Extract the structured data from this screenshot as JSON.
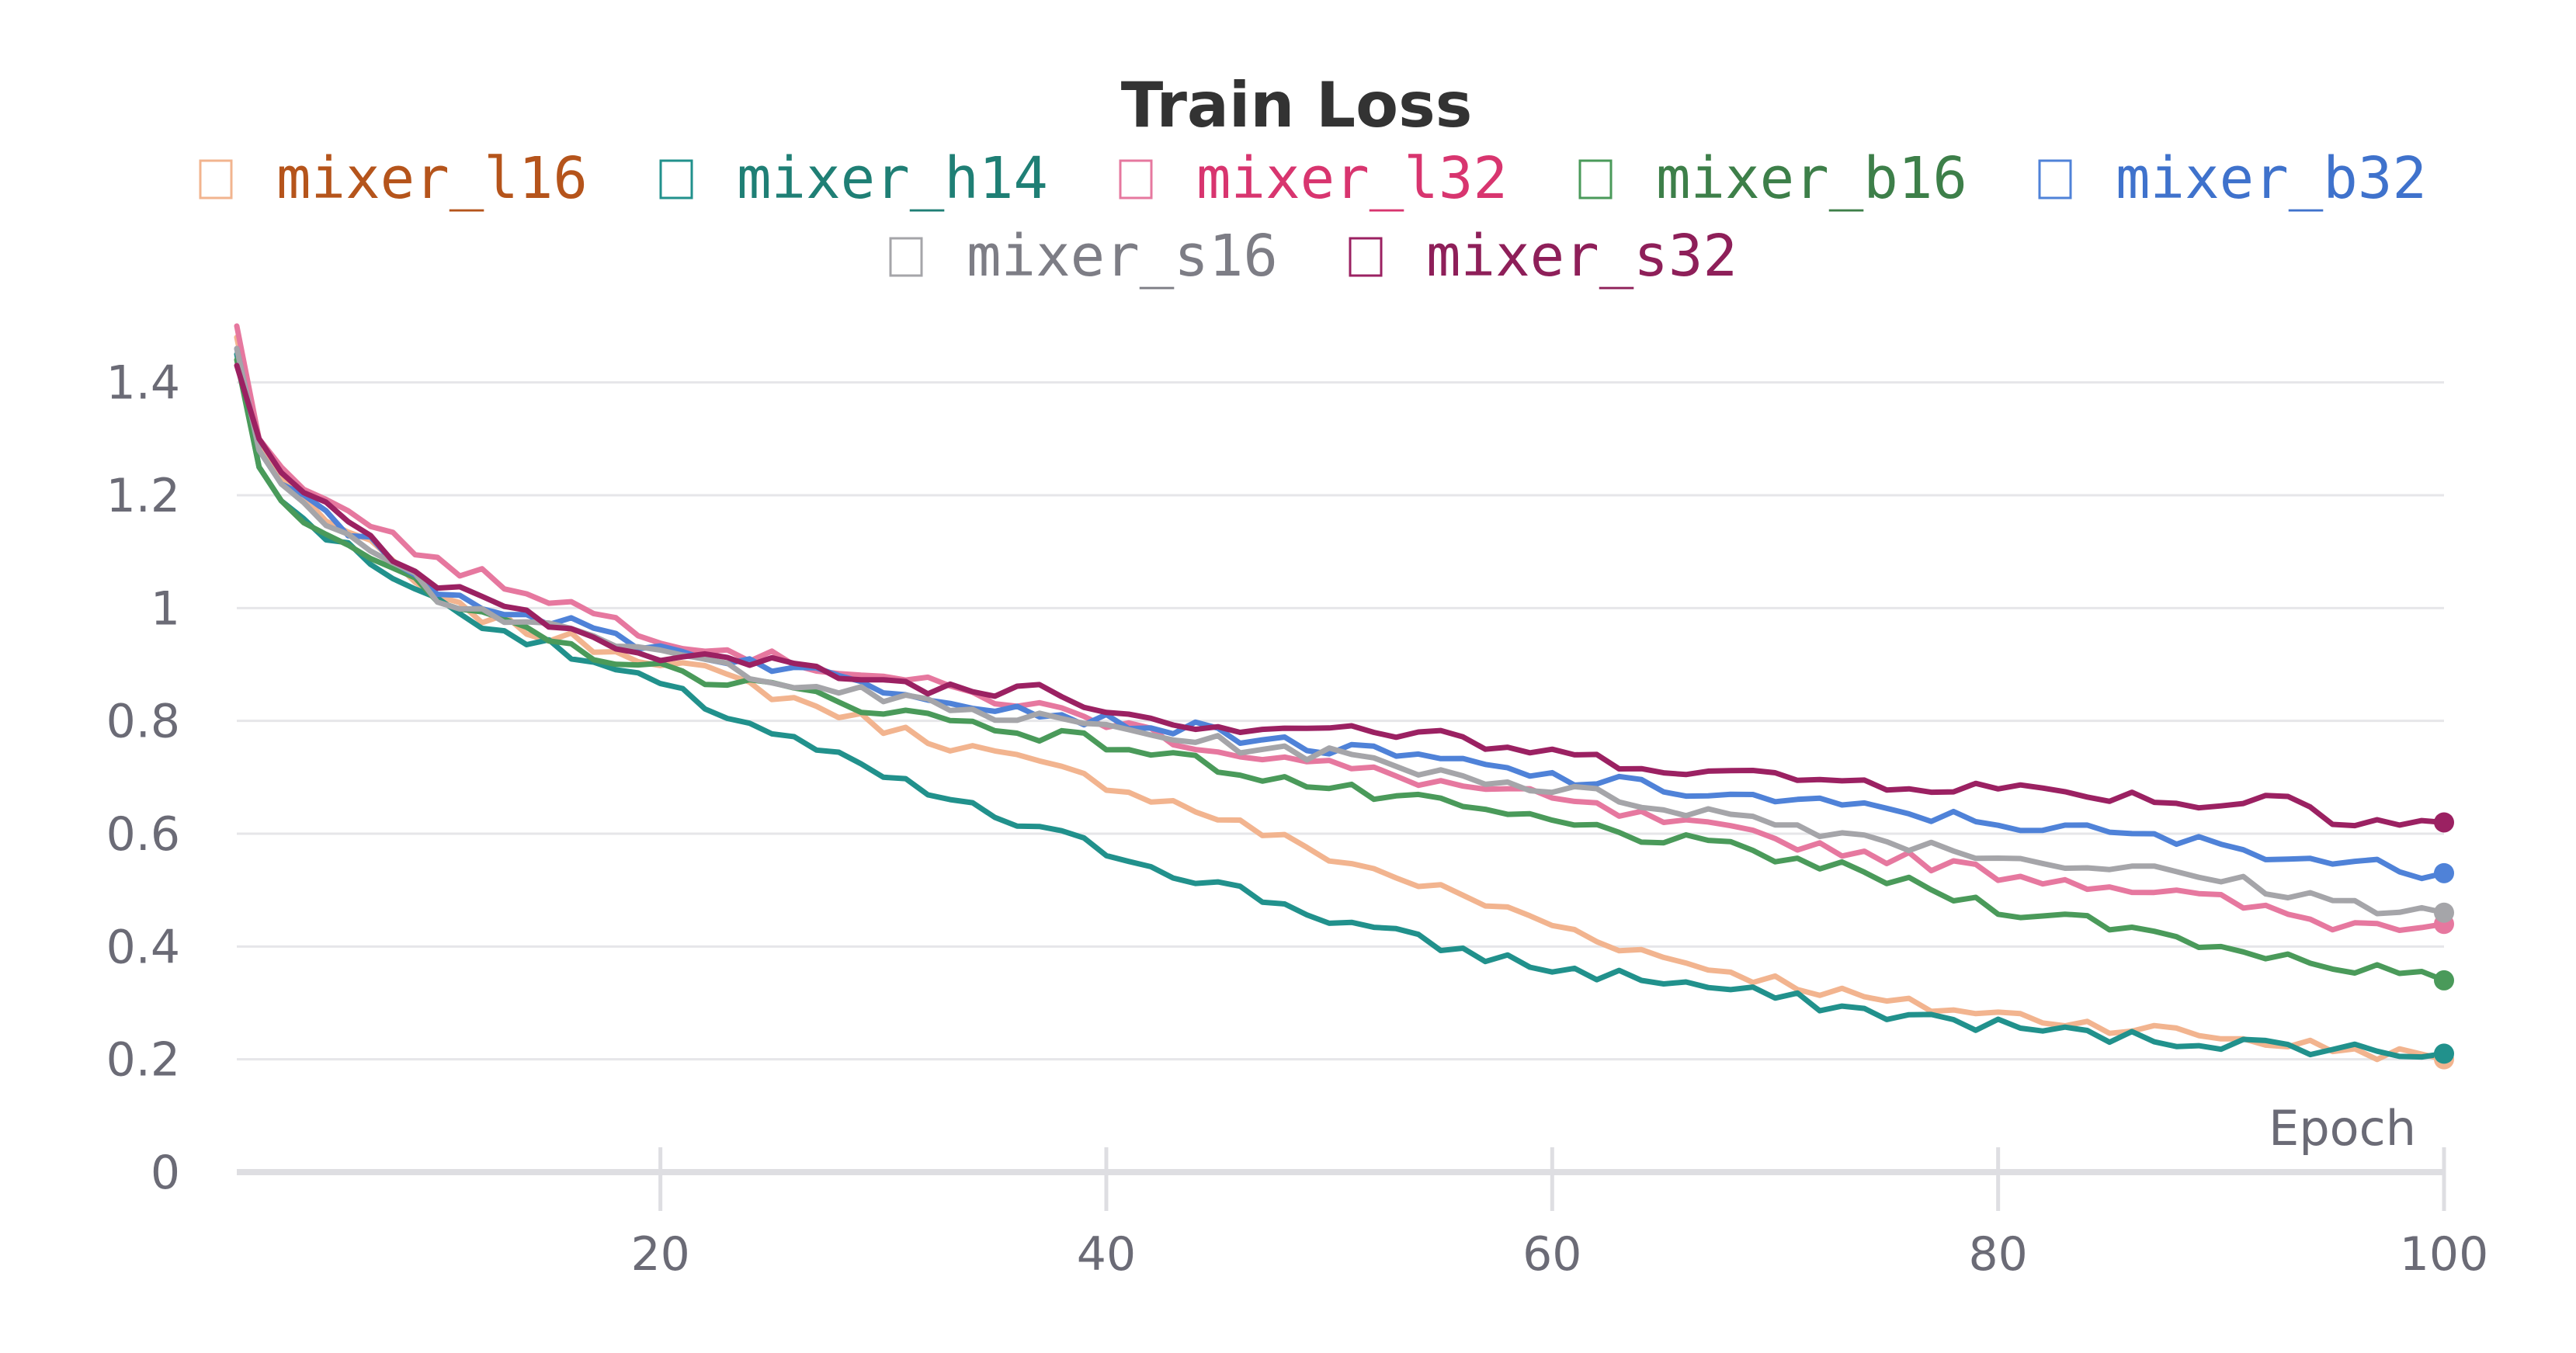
{
  "chart_data": {
    "type": "line",
    "title": "Train Loss",
    "xlabel": "Epoch",
    "ylabel": "",
    "xlim": [
      1,
      100
    ],
    "ylim": [
      0,
      1.5
    ],
    "xticks": [
      20,
      40,
      60,
      80,
      100
    ],
    "yticks": [
      0,
      0.2,
      0.4,
      0.6,
      0.8,
      1,
      1.2,
      1.4
    ],
    "ytick_labels": [
      "0",
      "0.2",
      "0.4",
      "0.6",
      "0.8",
      "1",
      "1.2",
      "1.4"
    ],
    "grid": true,
    "legend_position": "top",
    "series": [
      {
        "name": "mixer_l16",
        "color": "#f2b48f",
        "text_color": "#b5541b",
        "anchors": [
          [
            1,
            1.48
          ],
          [
            2,
            1.29
          ],
          [
            3,
            1.23
          ],
          [
            5,
            1.16
          ],
          [
            8,
            1.08
          ],
          [
            10,
            1.01
          ],
          [
            15,
            0.95
          ],
          [
            20,
            0.91
          ],
          [
            25,
            0.85
          ],
          [
            30,
            0.79
          ],
          [
            35,
            0.74
          ],
          [
            40,
            0.69
          ],
          [
            45,
            0.63
          ],
          [
            50,
            0.56
          ],
          [
            55,
            0.5
          ],
          [
            60,
            0.44
          ],
          [
            65,
            0.38
          ],
          [
            70,
            0.34
          ],
          [
            75,
            0.3
          ],
          [
            80,
            0.28
          ],
          [
            85,
            0.26
          ],
          [
            90,
            0.24
          ],
          [
            95,
            0.22
          ],
          [
            100,
            0.2
          ]
        ]
      },
      {
        "name": "mixer_h14",
        "color": "#21918c",
        "text_color": "#1f7f75",
        "anchors": [
          [
            1,
            1.45
          ],
          [
            2,
            1.25
          ],
          [
            3,
            1.19
          ],
          [
            5,
            1.13
          ],
          [
            8,
            1.06
          ],
          [
            10,
            1.01
          ],
          [
            15,
            0.93
          ],
          [
            20,
            0.86
          ],
          [
            25,
            0.78
          ],
          [
            30,
            0.7
          ],
          [
            35,
            0.63
          ],
          [
            40,
            0.57
          ],
          [
            45,
            0.51
          ],
          [
            50,
            0.45
          ],
          [
            55,
            0.4
          ],
          [
            60,
            0.36
          ],
          [
            65,
            0.34
          ],
          [
            70,
            0.31
          ],
          [
            75,
            0.28
          ],
          [
            80,
            0.26
          ],
          [
            85,
            0.24
          ],
          [
            90,
            0.23
          ],
          [
            95,
            0.22
          ],
          [
            100,
            0.21
          ]
        ]
      },
      {
        "name": "mixer_l32",
        "color": "#e6789f",
        "text_color": "#d8356f",
        "anchors": [
          [
            1,
            1.5
          ],
          [
            2,
            1.3
          ],
          [
            3,
            1.25
          ],
          [
            5,
            1.19
          ],
          [
            8,
            1.13
          ],
          [
            10,
            1.08
          ],
          [
            15,
            1.02
          ],
          [
            20,
            0.95
          ],
          [
            25,
            0.91
          ],
          [
            30,
            0.88
          ],
          [
            35,
            0.84
          ],
          [
            40,
            0.8
          ],
          [
            45,
            0.75
          ],
          [
            50,
            0.72
          ],
          [
            55,
            0.69
          ],
          [
            60,
            0.66
          ],
          [
            65,
            0.62
          ],
          [
            70,
            0.59
          ],
          [
            75,
            0.56
          ],
          [
            80,
            0.53
          ],
          [
            85,
            0.51
          ],
          [
            90,
            0.48
          ],
          [
            95,
            0.44
          ],
          [
            100,
            0.44
          ]
        ]
      },
      {
        "name": "mixer_b16",
        "color": "#4a9a5a",
        "text_color": "#3d7f49",
        "anchors": [
          [
            1,
            1.44
          ],
          [
            2,
            1.25
          ],
          [
            3,
            1.19
          ],
          [
            5,
            1.14
          ],
          [
            8,
            1.07
          ],
          [
            10,
            1.01
          ],
          [
            15,
            0.94
          ],
          [
            20,
            0.89
          ],
          [
            25,
            0.86
          ],
          [
            30,
            0.82
          ],
          [
            35,
            0.79
          ],
          [
            40,
            0.76
          ],
          [
            45,
            0.72
          ],
          [
            50,
            0.68
          ],
          [
            55,
            0.65
          ],
          [
            60,
            0.62
          ],
          [
            65,
            0.59
          ],
          [
            70,
            0.56
          ],
          [
            75,
            0.52
          ],
          [
            80,
            0.47
          ],
          [
            85,
            0.44
          ],
          [
            90,
            0.4
          ],
          [
            95,
            0.37
          ],
          [
            100,
            0.34
          ]
        ]
      },
      {
        "name": "mixer_b32",
        "color": "#4f82d8",
        "text_color": "#3f72cc",
        "anchors": [
          [
            1,
            1.46
          ],
          [
            2,
            1.28
          ],
          [
            3,
            1.22
          ],
          [
            5,
            1.16
          ],
          [
            8,
            1.09
          ],
          [
            10,
            1.03
          ],
          [
            15,
            0.98
          ],
          [
            20,
            0.93
          ],
          [
            25,
            0.9
          ],
          [
            30,
            0.86
          ],
          [
            35,
            0.83
          ],
          [
            40,
            0.8
          ],
          [
            45,
            0.78
          ],
          [
            50,
            0.75
          ],
          [
            55,
            0.73
          ],
          [
            60,
            0.7
          ],
          [
            65,
            0.68
          ],
          [
            70,
            0.66
          ],
          [
            75,
            0.64
          ],
          [
            80,
            0.62
          ],
          [
            85,
            0.6
          ],
          [
            90,
            0.58
          ],
          [
            95,
            0.55
          ],
          [
            100,
            0.53
          ]
        ]
      },
      {
        "name": "mixer_s16",
        "color": "#a5a5a9",
        "text_color": "#7d7d85",
        "anchors": [
          [
            1,
            1.46
          ],
          [
            2,
            1.28
          ],
          [
            3,
            1.22
          ],
          [
            5,
            1.16
          ],
          [
            8,
            1.09
          ],
          [
            10,
            1.02
          ],
          [
            15,
            0.96
          ],
          [
            20,
            0.92
          ],
          [
            25,
            0.88
          ],
          [
            30,
            0.84
          ],
          [
            35,
            0.81
          ],
          [
            40,
            0.79
          ],
          [
            45,
            0.76
          ],
          [
            50,
            0.74
          ],
          [
            55,
            0.71
          ],
          [
            60,
            0.68
          ],
          [
            65,
            0.65
          ],
          [
            70,
            0.62
          ],
          [
            75,
            0.59
          ],
          [
            80,
            0.56
          ],
          [
            85,
            0.54
          ],
          [
            90,
            0.52
          ],
          [
            95,
            0.48
          ],
          [
            100,
            0.46
          ]
        ]
      },
      {
        "name": "mixer_s32",
        "color": "#9b2162",
        "text_color": "#8e1f59",
        "anchors": [
          [
            1,
            1.43
          ],
          [
            2,
            1.3
          ],
          [
            3,
            1.24
          ],
          [
            5,
            1.18
          ],
          [
            8,
            1.09
          ],
          [
            10,
            1.04
          ],
          [
            15,
            0.97
          ],
          [
            20,
            0.92
          ],
          [
            25,
            0.9
          ],
          [
            30,
            0.87
          ],
          [
            35,
            0.85
          ],
          [
            37,
            0.87
          ],
          [
            40,
            0.82
          ],
          [
            45,
            0.79
          ],
          [
            50,
            0.79
          ],
          [
            55,
            0.77
          ],
          [
            60,
            0.74
          ],
          [
            65,
            0.72
          ],
          [
            70,
            0.7
          ],
          [
            75,
            0.69
          ],
          [
            80,
            0.68
          ],
          [
            85,
            0.67
          ],
          [
            90,
            0.65
          ],
          [
            93,
            0.67
          ],
          [
            95,
            0.63
          ],
          [
            100,
            0.62
          ]
        ]
      }
    ]
  }
}
